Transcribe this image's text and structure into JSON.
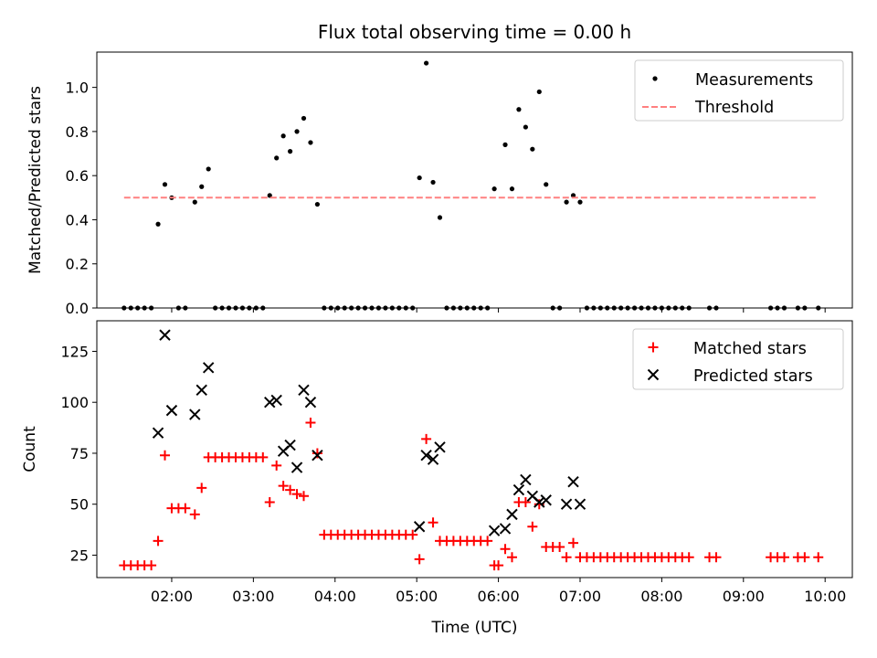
{
  "title": "Flux total observing time = 0.00 h",
  "colors": {
    "matched": "#ff0000",
    "predicted": "#000000",
    "threshold": "#ff8080",
    "measurements": "#000000"
  },
  "chart_data": [
    {
      "type": "scatter",
      "ylabel": "Matched/Predicted stars",
      "ylim": [
        0,
        1.16
      ],
      "yticks": [
        "0.0",
        "0.2",
        "0.4",
        "0.6",
        "0.8",
        "1.0"
      ],
      "legend_position": "top-right",
      "series": [
        {
          "name": "Measurements",
          "marker": "dot",
          "points": [
            [
              "01:25",
              0
            ],
            [
              "01:30",
              0
            ],
            [
              "01:35",
              0
            ],
            [
              "01:40",
              0
            ],
            [
              "01:45",
              0
            ],
            [
              "01:50",
              0.38
            ],
            [
              "01:55",
              0.56
            ],
            [
              "02:00",
              0.5
            ],
            [
              "02:05",
              0
            ],
            [
              "02:10",
              0
            ],
            [
              "02:17",
              0.48
            ],
            [
              "02:22",
              0.55
            ],
            [
              "02:27",
              0.63
            ],
            [
              "02:32",
              0
            ],
            [
              "02:37",
              0
            ],
            [
              "02:42",
              0
            ],
            [
              "02:47",
              0
            ],
            [
              "02:52",
              0
            ],
            [
              "02:57",
              0
            ],
            [
              "03:02",
              0
            ],
            [
              "03:07",
              0
            ],
            [
              "03:12",
              0.51
            ],
            [
              "03:17",
              0.68
            ],
            [
              "03:22",
              0.78
            ],
            [
              "03:27",
              0.71
            ],
            [
              "03:32",
              0.8
            ],
            [
              "03:37",
              0.86
            ],
            [
              "03:42",
              0.75
            ],
            [
              "03:47",
              0.47
            ],
            [
              "03:52",
              0
            ],
            [
              "03:57",
              0
            ],
            [
              "04:02",
              0
            ],
            [
              "04:07",
              0
            ],
            [
              "04:12",
              0
            ],
            [
              "04:17",
              0
            ],
            [
              "04:22",
              0
            ],
            [
              "04:27",
              0
            ],
            [
              "04:32",
              0
            ],
            [
              "04:37",
              0
            ],
            [
              "04:42",
              0
            ],
            [
              "04:47",
              0
            ],
            [
              "04:52",
              0
            ],
            [
              "04:57",
              0
            ],
            [
              "05:02",
              0.59
            ],
            [
              "05:07",
              1.11
            ],
            [
              "05:12",
              0.57
            ],
            [
              "05:17",
              0.41
            ],
            [
              "05:22",
              0
            ],
            [
              "05:27",
              0
            ],
            [
              "05:32",
              0
            ],
            [
              "05:37",
              0
            ],
            [
              "05:42",
              0
            ],
            [
              "05:47",
              0
            ],
            [
              "05:52",
              0
            ],
            [
              "05:57",
              0.54
            ],
            [
              "06:05",
              0.74
            ],
            [
              "06:10",
              0.54
            ],
            [
              "06:15",
              0.9
            ],
            [
              "06:20",
              0.82
            ],
            [
              "06:25",
              0.72
            ],
            [
              "06:30",
              0.98
            ],
            [
              "06:35",
              0.56
            ],
            [
              "06:40",
              0
            ],
            [
              "06:45",
              0
            ],
            [
              "06:50",
              0.48
            ],
            [
              "06:55",
              0.51
            ],
            [
              "07:00",
              0.48
            ],
            [
              "07:05",
              0
            ],
            [
              "07:10",
              0
            ],
            [
              "07:15",
              0
            ],
            [
              "07:20",
              0
            ],
            [
              "07:25",
              0
            ],
            [
              "07:30",
              0
            ],
            [
              "07:35",
              0
            ],
            [
              "07:40",
              0
            ],
            [
              "07:45",
              0
            ],
            [
              "07:50",
              0
            ],
            [
              "07:55",
              0
            ],
            [
              "08:00",
              0
            ],
            [
              "08:05",
              0
            ],
            [
              "08:10",
              0
            ],
            [
              "08:15",
              0
            ],
            [
              "08:20",
              0
            ],
            [
              "08:35",
              0
            ],
            [
              "08:40",
              0
            ],
            [
              "09:20",
              0
            ],
            [
              "09:25",
              0
            ],
            [
              "09:30",
              0
            ],
            [
              "09:40",
              0
            ],
            [
              "09:45",
              0
            ],
            [
              "09:55",
              0
            ]
          ]
        },
        {
          "name": "Threshold",
          "marker": "dashed-line",
          "points": [
            [
              "01:25",
              0.5
            ],
            [
              "09:55",
              0.5
            ]
          ]
        }
      ]
    },
    {
      "type": "scatter",
      "ylabel": "Count",
      "xlabel": "Time (UTC)",
      "ylim": [
        14,
        140
      ],
      "yticks": [
        "25",
        "50",
        "75",
        "100",
        "125"
      ],
      "xticks": [
        "02:00",
        "03:00",
        "04:00",
        "05:00",
        "06:00",
        "07:00",
        "08:00",
        "09:00",
        "10:00"
      ],
      "legend_position": "top-right",
      "series": [
        {
          "name": "Matched stars",
          "marker": "plus",
          "points": [
            [
              "01:25",
              20
            ],
            [
              "01:30",
              20
            ],
            [
              "01:35",
              20
            ],
            [
              "01:40",
              20
            ],
            [
              "01:45",
              20
            ],
            [
              "01:50",
              32
            ],
            [
              "01:55",
              74
            ],
            [
              "02:00",
              48
            ],
            [
              "02:05",
              48
            ],
            [
              "02:10",
              48
            ],
            [
              "02:17",
              45
            ],
            [
              "02:22",
              58
            ],
            [
              "02:27",
              73
            ],
            [
              "02:32",
              73
            ],
            [
              "02:37",
              73
            ],
            [
              "02:42",
              73
            ],
            [
              "02:47",
              73
            ],
            [
              "02:52",
              73
            ],
            [
              "02:57",
              73
            ],
            [
              "03:02",
              73
            ],
            [
              "03:07",
              73
            ],
            [
              "03:12",
              51
            ],
            [
              "03:17",
              69
            ],
            [
              "03:22",
              59
            ],
            [
              "03:27",
              57
            ],
            [
              "03:32",
              55
            ],
            [
              "03:37",
              54
            ],
            [
              "03:42",
              90
            ],
            [
              "03:47",
              75
            ],
            [
              "03:52",
              35
            ],
            [
              "03:57",
              35
            ],
            [
              "04:02",
              35
            ],
            [
              "04:07",
              35
            ],
            [
              "04:12",
              35
            ],
            [
              "04:17",
              35
            ],
            [
              "04:22",
              35
            ],
            [
              "04:27",
              35
            ],
            [
              "04:32",
              35
            ],
            [
              "04:37",
              35
            ],
            [
              "04:42",
              35
            ],
            [
              "04:47",
              35
            ],
            [
              "04:52",
              35
            ],
            [
              "04:57",
              35
            ],
            [
              "05:02",
              23
            ],
            [
              "05:07",
              82
            ],
            [
              "05:12",
              41
            ],
            [
              "05:17",
              32
            ],
            [
              "05:22",
              32
            ],
            [
              "05:27",
              32
            ],
            [
              "05:32",
              32
            ],
            [
              "05:37",
              32
            ],
            [
              "05:42",
              32
            ],
            [
              "05:47",
              32
            ],
            [
              "05:52",
              32
            ],
            [
              "05:57",
              20
            ],
            [
              "06:00",
              20
            ],
            [
              "06:05",
              28
            ],
            [
              "06:10",
              24
            ],
            [
              "06:15",
              51
            ],
            [
              "06:20",
              51
            ],
            [
              "06:25",
              39
            ],
            [
              "06:30",
              50
            ],
            [
              "06:35",
              29
            ],
            [
              "06:40",
              29
            ],
            [
              "06:45",
              29
            ],
            [
              "06:50",
              24
            ],
            [
              "06:55",
              31
            ],
            [
              "07:00",
              24
            ],
            [
              "07:05",
              24
            ],
            [
              "07:10",
              24
            ],
            [
              "07:15",
              24
            ],
            [
              "07:20",
              24
            ],
            [
              "07:25",
              24
            ],
            [
              "07:30",
              24
            ],
            [
              "07:35",
              24
            ],
            [
              "07:40",
              24
            ],
            [
              "07:45",
              24
            ],
            [
              "07:50",
              24
            ],
            [
              "07:55",
              24
            ],
            [
              "08:00",
              24
            ],
            [
              "08:05",
              24
            ],
            [
              "08:10",
              24
            ],
            [
              "08:15",
              24
            ],
            [
              "08:20",
              24
            ],
            [
              "08:35",
              24
            ],
            [
              "08:40",
              24
            ],
            [
              "09:20",
              24
            ],
            [
              "09:25",
              24
            ],
            [
              "09:30",
              24
            ],
            [
              "09:40",
              24
            ],
            [
              "09:45",
              24
            ],
            [
              "09:55",
              24
            ]
          ]
        },
        {
          "name": "Predicted stars",
          "marker": "x",
          "points": [
            [
              "01:50",
              85
            ],
            [
              "01:55",
              133
            ],
            [
              "02:00",
              96
            ],
            [
              "02:17",
              94
            ],
            [
              "02:22",
              106
            ],
            [
              "02:27",
              117
            ],
            [
              "03:12",
              100
            ],
            [
              "03:17",
              101
            ],
            [
              "03:22",
              76
            ],
            [
              "03:27",
              79
            ],
            [
              "03:32",
              68
            ],
            [
              "03:37",
              106
            ],
            [
              "03:42",
              100
            ],
            [
              "03:47",
              74
            ],
            [
              "05:02",
              39
            ],
            [
              "05:07",
              74
            ],
            [
              "05:12",
              72
            ],
            [
              "05:17",
              78
            ],
            [
              "05:57",
              37
            ],
            [
              "06:05",
              38
            ],
            [
              "06:10",
              45
            ],
            [
              "06:15",
              57
            ],
            [
              "06:20",
              62
            ],
            [
              "06:25",
              54
            ],
            [
              "06:30",
              51
            ],
            [
              "06:35",
              52
            ],
            [
              "06:50",
              50
            ],
            [
              "06:55",
              61
            ],
            [
              "07:00",
              50
            ]
          ]
        }
      ]
    }
  ]
}
